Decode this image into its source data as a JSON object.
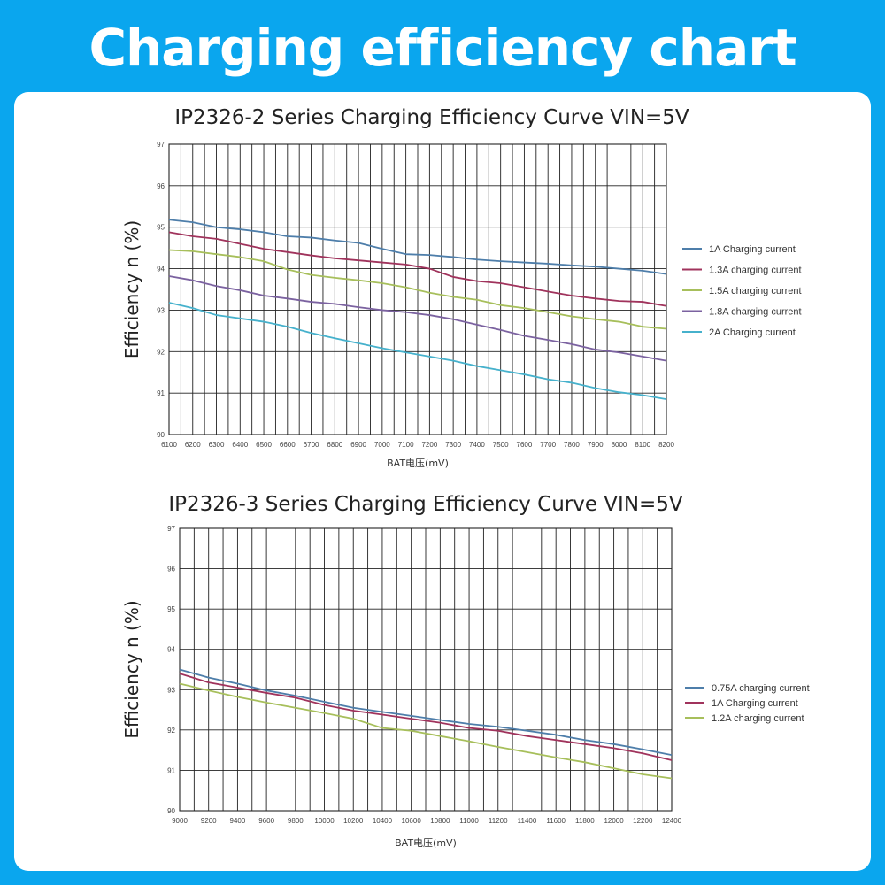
{
  "page": {
    "title": "Charging efficiency chart",
    "background": "#0aa6ee"
  },
  "chart_data": [
    {
      "type": "line",
      "title": "IP2326-2 Series Charging Efficiency Curve VIN=5V",
      "xlabel": "BAT电压(mV)",
      "ylabel": "Efficiency n (%)",
      "xlim": [
        6100,
        8200
      ],
      "ylim": [
        90,
        97
      ],
      "xticks": [
        6100,
        6200,
        6300,
        6400,
        6500,
        6600,
        6700,
        6800,
        6900,
        7000,
        7100,
        7200,
        7300,
        7400,
        7500,
        7600,
        7700,
        7800,
        7900,
        8000,
        8100,
        8200
      ],
      "yticks": [
        90,
        91,
        92,
        93,
        94,
        95,
        96,
        97
      ],
      "grid": true,
      "legend_position": "right",
      "x": [
        6100,
        6200,
        6300,
        6400,
        6500,
        6600,
        6700,
        6800,
        6900,
        7000,
        7100,
        7200,
        7300,
        7400,
        7500,
        7600,
        7700,
        7800,
        7900,
        8000,
        8100,
        8200
      ],
      "series": [
        {
          "name": "1A Charging current",
          "color": "#4e7eaa",
          "values": [
            95.18,
            95.12,
            95.0,
            94.95,
            94.88,
            94.78,
            94.75,
            94.68,
            94.62,
            94.48,
            94.35,
            94.33,
            94.28,
            94.22,
            94.18,
            94.15,
            94.12,
            94.08,
            94.05,
            94.0,
            93.95,
            93.87
          ]
        },
        {
          "name": "1.3A charging current",
          "color": "#a0335c",
          "values": [
            94.88,
            94.78,
            94.72,
            94.6,
            94.48,
            94.4,
            94.32,
            94.25,
            94.2,
            94.15,
            94.1,
            94.0,
            93.8,
            93.7,
            93.65,
            93.55,
            93.45,
            93.35,
            93.28,
            93.22,
            93.2,
            93.1
          ]
        },
        {
          "name": "1.5A charging current",
          "color": "#a7bf5b",
          "values": [
            94.45,
            94.42,
            94.35,
            94.28,
            94.18,
            93.98,
            93.85,
            93.78,
            93.72,
            93.65,
            93.55,
            93.42,
            93.32,
            93.25,
            93.12,
            93.05,
            92.95,
            92.85,
            92.78,
            92.72,
            92.6,
            92.55
          ]
        },
        {
          "name": "1.8A charging current",
          "color": "#7b62a0",
          "values": [
            93.82,
            93.72,
            93.58,
            93.48,
            93.35,
            93.28,
            93.2,
            93.15,
            93.07,
            93.0,
            92.95,
            92.88,
            92.78,
            92.65,
            92.52,
            92.38,
            92.28,
            92.18,
            92.05,
            91.98,
            91.88,
            91.78
          ]
        },
        {
          "name": "2A Charging current",
          "color": "#46b1cc",
          "values": [
            93.18,
            93.05,
            92.88,
            92.8,
            92.72,
            92.6,
            92.45,
            92.32,
            92.2,
            92.08,
            91.98,
            91.88,
            91.78,
            91.65,
            91.55,
            91.45,
            91.33,
            91.25,
            91.12,
            91.02,
            90.95,
            90.85
          ]
        }
      ]
    },
    {
      "type": "line",
      "title": "IP2326-3 Series Charging Efficiency Curve VIN=5V",
      "xlabel": "BAT电压(mV)",
      "ylabel": "Efficiency n (%)",
      "xlim": [
        9000,
        12400
      ],
      "ylim": [
        90,
        97
      ],
      "xticks": [
        9000,
        9200,
        9400,
        9600,
        9800,
        10000,
        10200,
        10400,
        10600,
        10800,
        11000,
        11200,
        11400,
        11600,
        11800,
        12000,
        12200,
        12400
      ],
      "yticks": [
        90,
        91,
        92,
        93,
        94,
        95,
        96,
        97
      ],
      "grid": true,
      "legend_position": "right",
      "x": [
        9000,
        9200,
        9400,
        9600,
        9800,
        10000,
        10200,
        10400,
        10600,
        10800,
        11000,
        11200,
        11400,
        11600,
        11800,
        12000,
        12200,
        12400
      ],
      "series": [
        {
          "name": "0.75A charging current",
          "color": "#4e7eaa",
          "values": [
            93.5,
            93.3,
            93.15,
            92.98,
            92.85,
            92.7,
            92.55,
            92.45,
            92.35,
            92.25,
            92.15,
            92.08,
            91.98,
            91.88,
            91.75,
            91.65,
            91.52,
            91.38
          ]
        },
        {
          "name": "1A Charging current",
          "color": "#a0335c",
          "values": [
            93.4,
            93.18,
            93.05,
            92.92,
            92.8,
            92.62,
            92.48,
            92.38,
            92.28,
            92.18,
            92.05,
            91.98,
            91.85,
            91.75,
            91.65,
            91.55,
            91.42,
            91.25
          ]
        },
        {
          "name": "1.2A charging current",
          "color": "#a7bf5b",
          "values": [
            93.15,
            92.98,
            92.82,
            92.68,
            92.55,
            92.42,
            92.28,
            92.05,
            91.98,
            91.85,
            91.72,
            91.58,
            91.45,
            91.32,
            91.2,
            91.05,
            90.9,
            90.8
          ]
        }
      ]
    }
  ]
}
